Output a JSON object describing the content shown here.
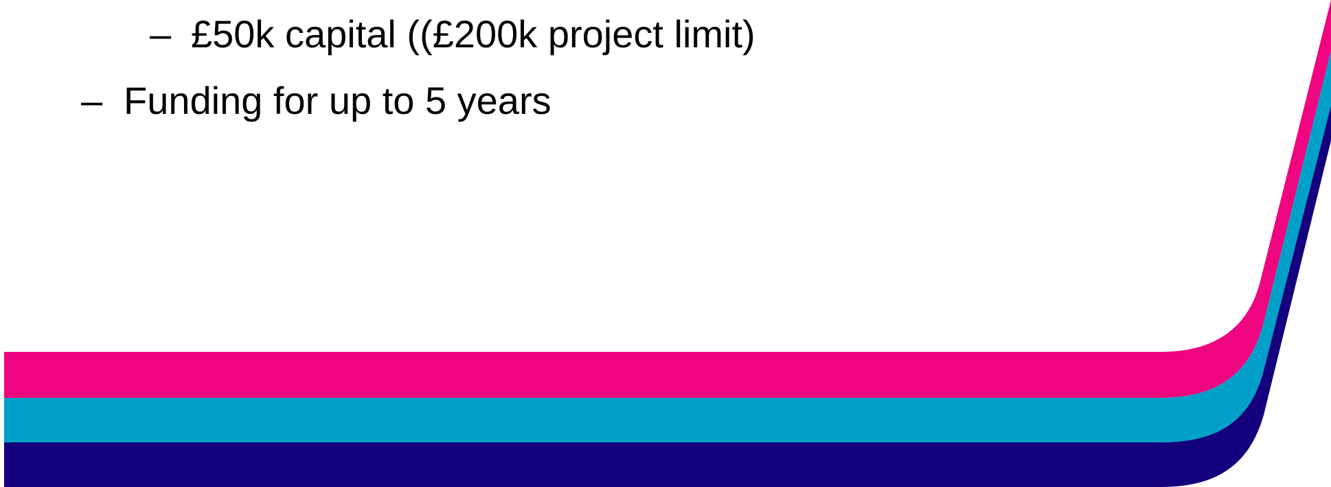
{
  "slide": {
    "bullets": [
      {
        "level": 2,
        "marker": "–",
        "text": "£50k capital ((£200k project limit)"
      },
      {
        "level": 1,
        "marker": "–",
        "text": "Funding for up to 5 years"
      }
    ],
    "colors": {
      "magenta_band": "#EF057F",
      "cyan_band": "#00A0C8",
      "navy_band": "#14007D",
      "background": "#FFFFFF",
      "text": "#000000"
    }
  }
}
